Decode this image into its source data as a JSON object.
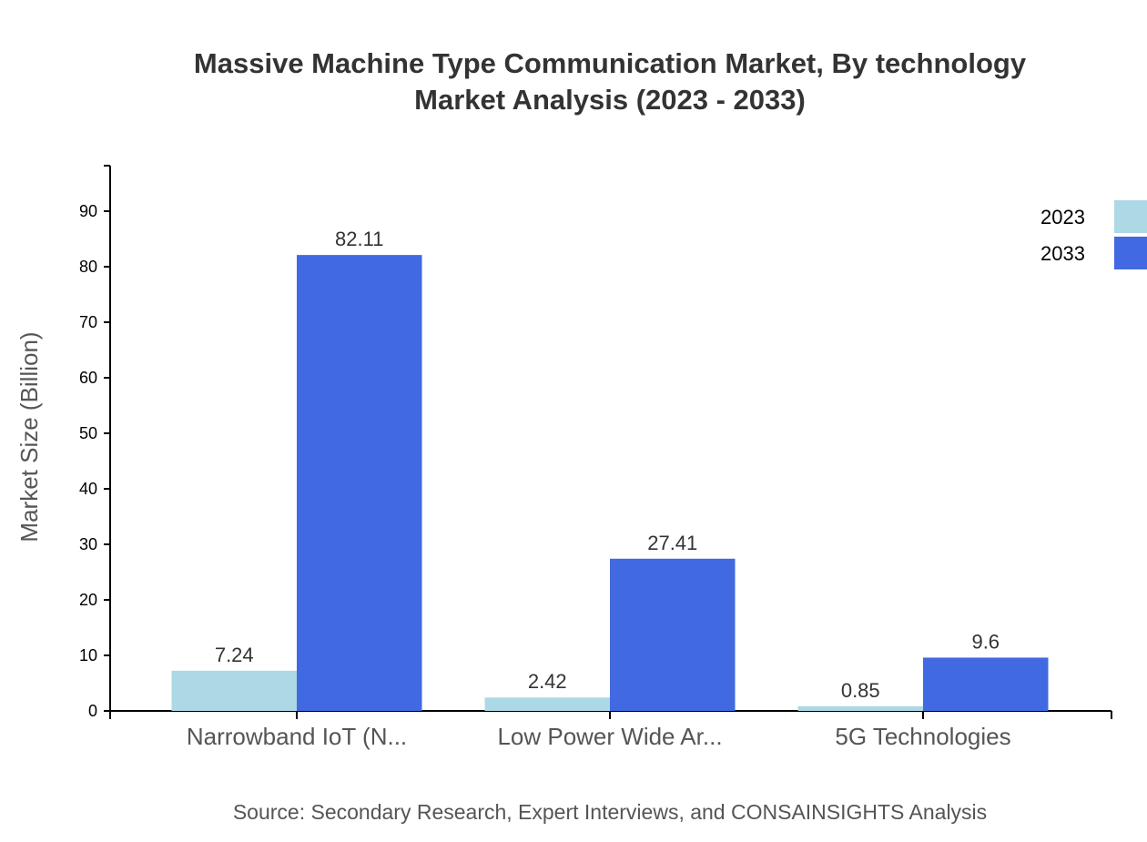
{
  "chart_data": {
    "type": "bar",
    "title": "Massive Machine Type Communication Market, By technology",
    "subtitle": "Market Analysis (2023 - 2033)",
    "xlabel": "",
    "ylabel": "Market Size (Billion)",
    "categories": [
      "Narrowband IoT (N...",
      "Low Power Wide Ar...",
      "5G Technologies"
    ],
    "series": [
      {
        "name": "2023",
        "values": [
          7.24,
          2.42,
          0.85
        ],
        "color": "#add8e6"
      },
      {
        "name": "2033",
        "values": [
          82.11,
          27.41,
          9.6
        ],
        "color": "#4169e1"
      }
    ],
    "yticks": [
      0,
      10,
      20,
      30,
      40,
      50,
      60,
      70,
      80,
      90
    ],
    "ylim": [
      0,
      98.2
    ],
    "grid": false,
    "legend": "top-right",
    "source": "Source: Secondary Research, Expert Interviews, and CONSAINSIGHTS Analysis"
  }
}
